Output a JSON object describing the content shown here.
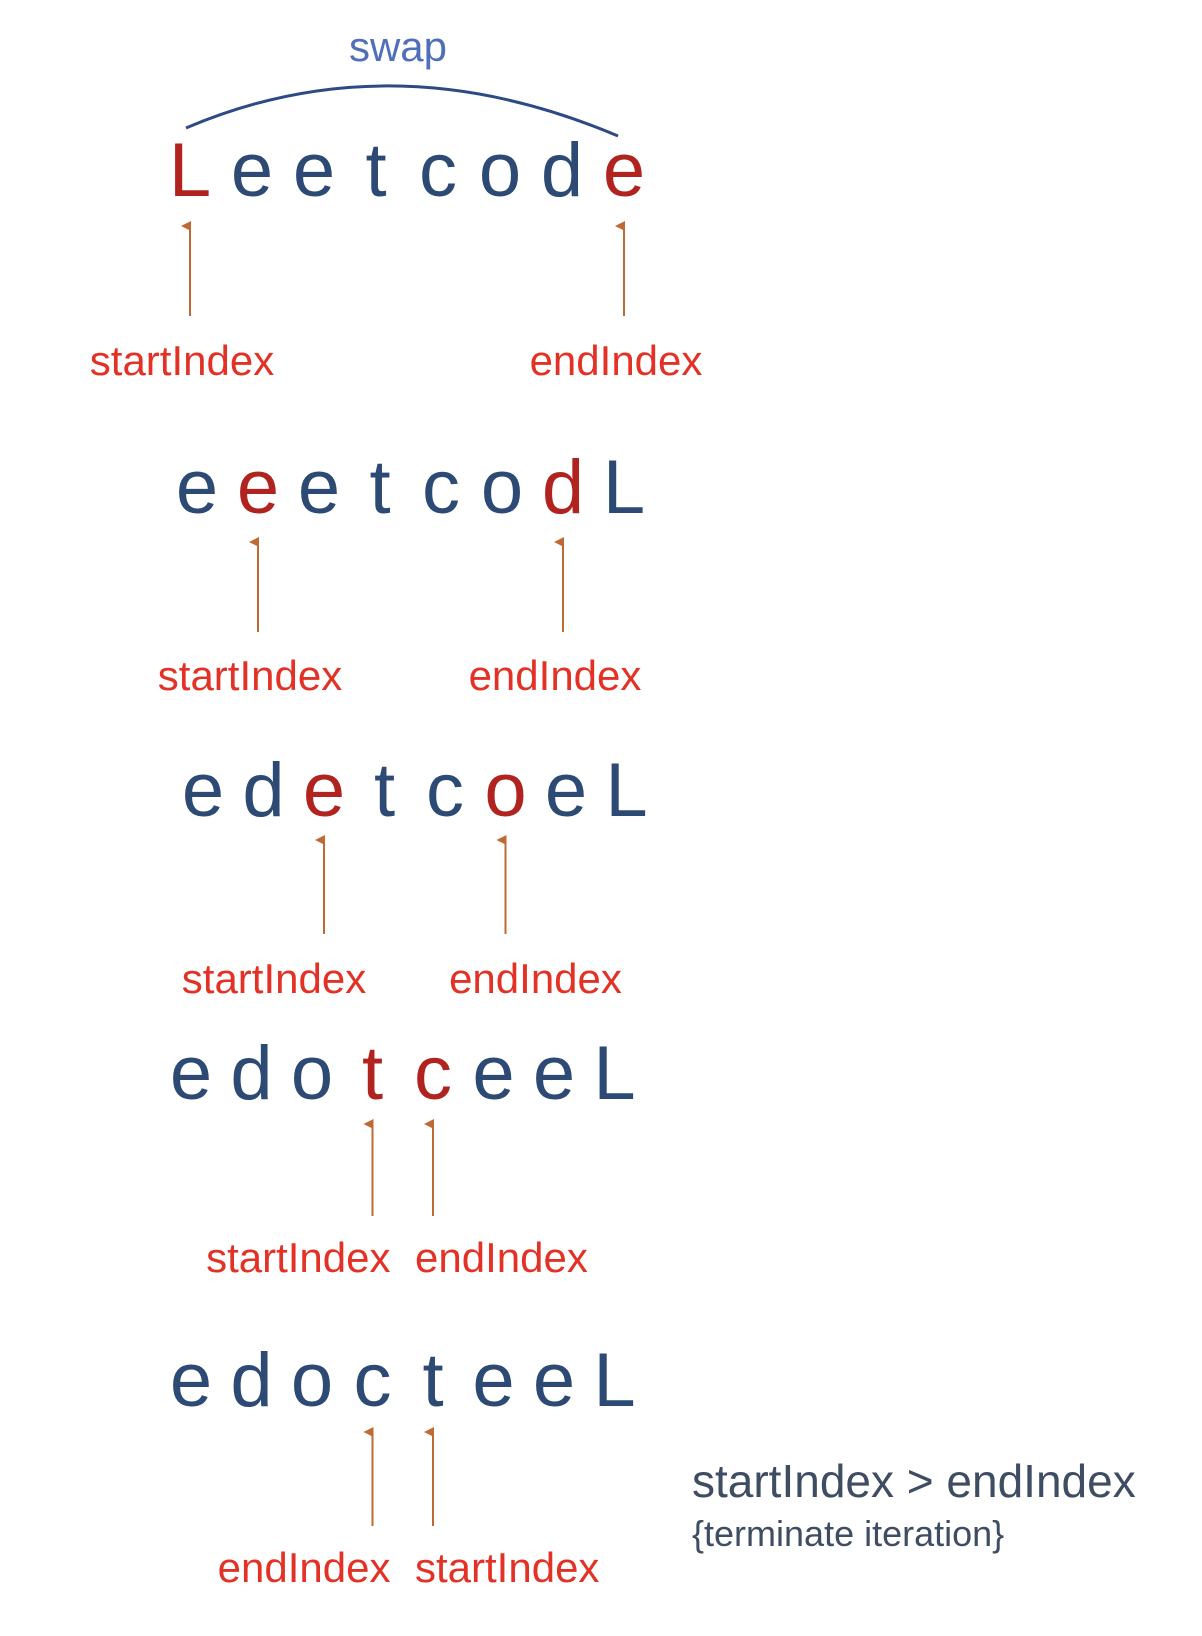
{
  "colors": {
    "letter": "#2c4a73",
    "highlight": "#b0231f",
    "label": "#e33225",
    "arrow": "#c06a33",
    "swap": "#4f70b8",
    "arc": "#2e4a85",
    "note": "#3f4d63"
  },
  "swap_label": "swap",
  "rows": [
    {
      "letters": [
        "L",
        "e",
        "e",
        "t",
        "c",
        "o",
        "d",
        "e"
      ],
      "highlight": [
        0,
        7
      ],
      "pointers": [
        {
          "index": 0,
          "label": "startIndex"
        },
        {
          "index": 7,
          "label": "endIndex"
        }
      ]
    },
    {
      "letters": [
        "e",
        "e",
        "e",
        "t",
        "c",
        "o",
        "d",
        "L"
      ],
      "highlight": [
        1,
        6
      ],
      "pointers": [
        {
          "index": 1,
          "label": "startIndex"
        },
        {
          "index": 6,
          "label": "endIndex"
        }
      ]
    },
    {
      "letters": [
        "e",
        "d",
        "e",
        "t",
        "c",
        "o",
        "e",
        "L"
      ],
      "highlight": [
        2,
        5
      ],
      "pointers": [
        {
          "index": 2,
          "label": "startIndex"
        },
        {
          "index": 5,
          "label": "endIndex"
        }
      ]
    },
    {
      "letters": [
        "e",
        "d",
        "o",
        "t",
        "c",
        "e",
        "e",
        "L"
      ],
      "highlight": [
        3,
        4
      ],
      "pointers": [
        {
          "index": 3,
          "label": "startIndex"
        },
        {
          "index": 4,
          "label": "endIndex"
        }
      ]
    },
    {
      "letters": [
        "e",
        "d",
        "o",
        "c",
        "t",
        "e",
        "e",
        "L"
      ],
      "highlight": [],
      "pointers": [
        {
          "index": 3,
          "label": "endIndex"
        },
        {
          "index": 4,
          "label": "startIndex"
        }
      ]
    }
  ],
  "note": {
    "condition": "startIndex > endIndex",
    "action": "{terminate iteration}"
  }
}
